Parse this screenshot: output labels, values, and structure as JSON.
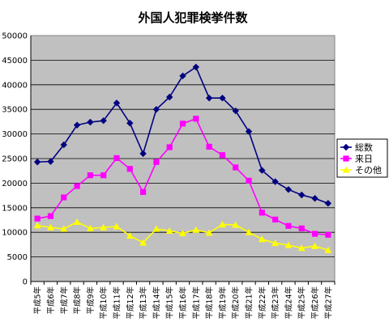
{
  "chart_data": {
    "type": "line",
    "title": "外国人犯罪検挙件数",
    "xlabel": "",
    "ylabel": "",
    "ylim": [
      0,
      50000
    ],
    "yticks": [
      0,
      5000,
      10000,
      15000,
      20000,
      25000,
      30000,
      35000,
      40000,
      45000,
      50000
    ],
    "categories": [
      "平成5年",
      "平成6年",
      "平成7年",
      "平成8年",
      "平成9年",
      "平成10年",
      "平成11年",
      "平成12年",
      "平成13年",
      "平成14年",
      "平成15年",
      "平成16年",
      "平成17年",
      "平成18年",
      "平成19年",
      "平成20年",
      "平成21年",
      "平成22年",
      "平成23年",
      "平成24年",
      "平成25年",
      "平成26年",
      "平成27年"
    ],
    "grid": true,
    "legend": "right",
    "series": [
      {
        "name": "総数",
        "color": "#000080",
        "marker": "diamond",
        "values": [
          24300,
          24400,
          27800,
          31800,
          32400,
          32700,
          36300,
          32200,
          26000,
          35000,
          37500,
          41800,
          43600,
          37300,
          37300,
          34700,
          30500,
          22600,
          20300,
          18700,
          17600,
          16900,
          15900
        ]
      },
      {
        "name": "来日",
        "color": "#ff00ff",
        "marker": "square",
        "values": [
          12800,
          13300,
          17100,
          19400,
          21600,
          21600,
          25100,
          22900,
          18200,
          24300,
          27300,
          32100,
          33100,
          27400,
          25700,
          23200,
          20500,
          14000,
          12600,
          11300,
          10800,
          9700,
          9500
        ]
      },
      {
        "name": "その他",
        "color": "#ffff00",
        "marker": "triangle",
        "values": [
          11400,
          11000,
          10700,
          12100,
          10800,
          11000,
          11200,
          9300,
          7900,
          10700,
          10300,
          9800,
          10500,
          9900,
          11600,
          11500,
          10000,
          8600,
          7800,
          7400,
          6800,
          7200,
          6400
        ]
      }
    ]
  }
}
